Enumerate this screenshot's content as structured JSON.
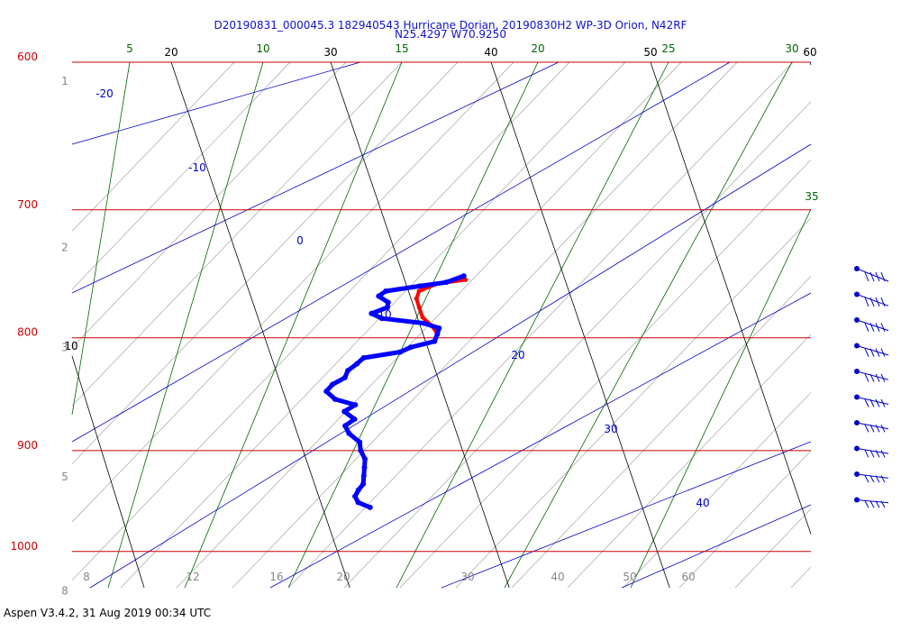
{
  "title_line1": "D20190831_000045.3 182940543 Hurricane Dorian, 20190830H2 WP-3D Orion, N42RF",
  "title_line2": "N25.4297 W70.9250",
  "footer": "Aspen V3.4.2, 31 Aug 2019  00:34 UTC",
  "chart_data": {
    "type": "line",
    "colors": {
      "isobar": "#cc0000",
      "isotherm": "#000000",
      "dry_adiabat": "#0000cc",
      "mixing_ratio": "#006600",
      "moist_adiabat": "#999999",
      "temperature": "#ff0000",
      "dewpoint": "#0000ff",
      "wind_barb": "#0000cc"
    },
    "ylim_hPa": [
      600,
      1050
    ],
    "isobars": [
      {
        "p": 600,
        "label": "600"
      },
      {
        "p": 700,
        "label": "700"
      },
      {
        "p": 800,
        "label": "800"
      },
      {
        "p": 900,
        "label": "900"
      },
      {
        "p": 1000,
        "label": "1000"
      }
    ],
    "height_labels": [
      {
        "p": 612,
        "label": "1"
      },
      {
        "p": 728,
        "label": "2"
      },
      {
        "p": 808,
        "label": "3"
      },
      {
        "p": 925,
        "label": "5"
      },
      {
        "p": 1042,
        "label": "8"
      }
    ],
    "isotherms": [
      {
        "t": 20,
        "label": "20",
        "label_pos": "top"
      },
      {
        "t": 30,
        "label": "30",
        "label_pos": "top"
      },
      {
        "t": 40,
        "label": "40",
        "label_pos": "top"
      },
      {
        "t": 50,
        "label": "50",
        "label_pos": "top"
      },
      {
        "t": 60,
        "label": "60",
        "label_pos": "top"
      },
      {
        "t": 10,
        "label": "10",
        "label_pos": "left"
      }
    ],
    "mixing_ratio_lines": [
      "5",
      "10",
      "15",
      "20",
      "25",
      "30",
      "35"
    ],
    "dry_adiabats": [
      "-20",
      "-10",
      "0",
      "10",
      "20",
      "30",
      "40"
    ],
    "bottom_labels": [
      "8",
      "12",
      "16",
      "20",
      "30",
      "40",
      "50",
      "60"
    ],
    "series": [
      {
        "key": "temperature",
        "points": [
          [
            753,
            31.5
          ],
          [
            756,
            29.6
          ],
          [
            762,
            28.2
          ],
          [
            768,
            27.8
          ],
          [
            775,
            27.7
          ],
          [
            783,
            27.6
          ],
          [
            790,
            27.9
          ],
          [
            795,
            28.0
          ]
        ]
      },
      {
        "key": "dewpoint",
        "points": [
          [
            750,
            31.5
          ],
          [
            755,
            30.2
          ],
          [
            758,
            28.4
          ],
          [
            762,
            26.1
          ],
          [
            766,
            25.5
          ],
          [
            771,
            25.9
          ],
          [
            775,
            25.7
          ],
          [
            780,
            24.5
          ],
          [
            784,
            25.0
          ],
          [
            788,
            27.5
          ],
          [
            792,
            28.3
          ],
          [
            797,
            28.0
          ],
          [
            803,
            27.6
          ],
          [
            808,
            25.9
          ],
          [
            812,
            25.1
          ],
          [
            817,
            22.6
          ],
          [
            822,
            22.0
          ],
          [
            828,
            21.2
          ],
          [
            834,
            20.8
          ],
          [
            840,
            19.8
          ],
          [
            846,
            19.2
          ],
          [
            853,
            19.5
          ],
          [
            858,
            20.6
          ],
          [
            864,
            19.7
          ],
          [
            871,
            20.1
          ],
          [
            877,
            19.3
          ],
          [
            884,
            19.3
          ],
          [
            892,
            19.7
          ],
          [
            900,
            19.5
          ],
          [
            908,
            19.5
          ],
          [
            916,
            19.2
          ],
          [
            924,
            18.9
          ],
          [
            932,
            18.6
          ],
          [
            938,
            18.1
          ],
          [
            944,
            17.7
          ],
          [
            950,
            17.7
          ],
          [
            955,
            18.3
          ]
        ]
      }
    ],
    "wind_barbs_count": 10
  }
}
